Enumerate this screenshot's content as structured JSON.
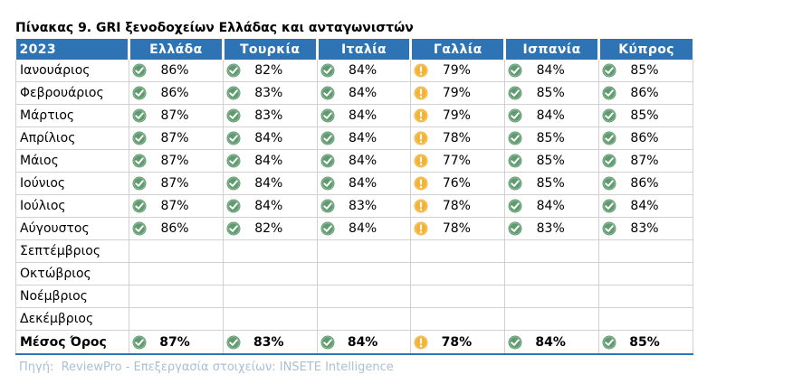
{
  "title": "Πίνακας 9. GRI ξενοδοχείων Ελλάδας και ανταγωνιστών",
  "header": {
    "year": "2023",
    "countries": [
      "Ελλάδα",
      "Τουρκία",
      "Ιταλία",
      "Γαλλία",
      "Ισπανία",
      "Κύπρος"
    ]
  },
  "rows": [
    {
      "label": "Ιανουάριος",
      "cells": [
        {
          "v": "86%",
          "s": "good"
        },
        {
          "v": "82%",
          "s": "good"
        },
        {
          "v": "84%",
          "s": "good"
        },
        {
          "v": "79%",
          "s": "warn"
        },
        {
          "v": "84%",
          "s": "good"
        },
        {
          "v": "85%",
          "s": "good"
        }
      ]
    },
    {
      "label": "Φεβρουάριος",
      "cells": [
        {
          "v": "86%",
          "s": "good"
        },
        {
          "v": "83%",
          "s": "good"
        },
        {
          "v": "84%",
          "s": "good"
        },
        {
          "v": "79%",
          "s": "warn"
        },
        {
          "v": "85%",
          "s": "good"
        },
        {
          "v": "86%",
          "s": "good"
        }
      ]
    },
    {
      "label": "Μάρτιος",
      "cells": [
        {
          "v": "87%",
          "s": "good"
        },
        {
          "v": "83%",
          "s": "good"
        },
        {
          "v": "84%",
          "s": "good"
        },
        {
          "v": "79%",
          "s": "warn"
        },
        {
          "v": "84%",
          "s": "good"
        },
        {
          "v": "85%",
          "s": "good"
        }
      ]
    },
    {
      "label": "Απρίλιος",
      "cells": [
        {
          "v": "87%",
          "s": "good"
        },
        {
          "v": "84%",
          "s": "good"
        },
        {
          "v": "84%",
          "s": "good"
        },
        {
          "v": "78%",
          "s": "warn"
        },
        {
          "v": "85%",
          "s": "good"
        },
        {
          "v": "86%",
          "s": "good"
        }
      ]
    },
    {
      "label": "Μάιος",
      "cells": [
        {
          "v": "87%",
          "s": "good"
        },
        {
          "v": "84%",
          "s": "good"
        },
        {
          "v": "84%",
          "s": "good"
        },
        {
          "v": "77%",
          "s": "warn"
        },
        {
          "v": "85%",
          "s": "good"
        },
        {
          "v": "87%",
          "s": "good"
        }
      ]
    },
    {
      "label": "Ιούνιος",
      "cells": [
        {
          "v": "87%",
          "s": "good"
        },
        {
          "v": "84%",
          "s": "good"
        },
        {
          "v": "84%",
          "s": "good"
        },
        {
          "v": "76%",
          "s": "warn"
        },
        {
          "v": "85%",
          "s": "good"
        },
        {
          "v": "86%",
          "s": "good"
        }
      ]
    },
    {
      "label": "Ιούλιος",
      "cells": [
        {
          "v": "87%",
          "s": "good"
        },
        {
          "v": "84%",
          "s": "good"
        },
        {
          "v": "83%",
          "s": "good"
        },
        {
          "v": "78%",
          "s": "warn"
        },
        {
          "v": "84%",
          "s": "good"
        },
        {
          "v": "84%",
          "s": "good"
        }
      ]
    },
    {
      "label": "Αύγουστος",
      "cells": [
        {
          "v": "86%",
          "s": "good"
        },
        {
          "v": "82%",
          "s": "good"
        },
        {
          "v": "84%",
          "s": "good"
        },
        {
          "v": "78%",
          "s": "warn"
        },
        {
          "v": "83%",
          "s": "good"
        },
        {
          "v": "83%",
          "s": "good"
        }
      ]
    },
    {
      "label": "Σεπτέμβριος",
      "cells": [
        null,
        null,
        null,
        null,
        null,
        null
      ]
    },
    {
      "label": "Οκτώβριος",
      "cells": [
        null,
        null,
        null,
        null,
        null,
        null
      ]
    },
    {
      "label": "Νοέμβριος",
      "cells": [
        null,
        null,
        null,
        null,
        null,
        null
      ]
    },
    {
      "label": "Δεκέμβριος",
      "cells": [
        null,
        null,
        null,
        null,
        null,
        null
      ]
    }
  ],
  "average": {
    "label": "Μέσος Όρος",
    "cells": [
      {
        "v": "87%",
        "s": "good"
      },
      {
        "v": "83%",
        "s": "good"
      },
      {
        "v": "84%",
        "s": "good"
      },
      {
        "v": "78%",
        "s": "warn"
      },
      {
        "v": "84%",
        "s": "good"
      },
      {
        "v": "85%",
        "s": "good"
      }
    ]
  },
  "source": "Πηγή:  ReviewPro - Επεξεργασία στοιχείων: INSETE Intelligence",
  "icons": {
    "good": "check-circle-icon",
    "warn": "exclamation-circle-icon"
  },
  "colors": {
    "header_bg": "#2e74b5",
    "good": "#5f9b6e",
    "warn": "#f2b233",
    "source_text": "#a9bfd6"
  }
}
